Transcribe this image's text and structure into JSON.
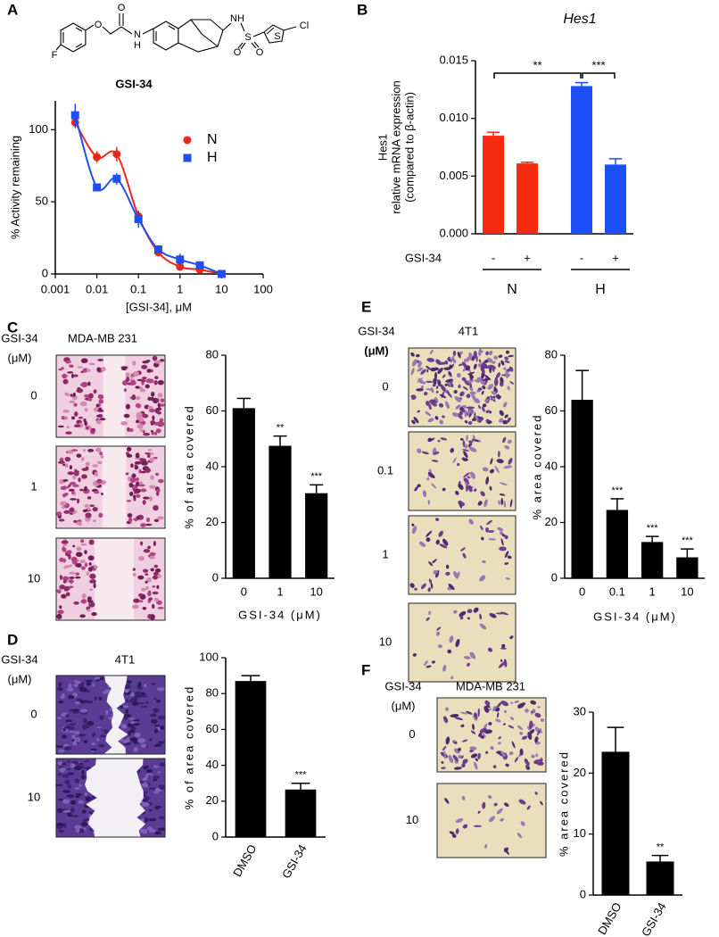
{
  "panels": [
    {
      "letter": "A",
      "structure_atoms": [
        "F",
        "O",
        "O",
        "N",
        "H",
        "NH",
        "S",
        "O",
        "O",
        "S",
        "Cl"
      ]
    },
    {
      "letter": "B"
    },
    {
      "letter": "C",
      "image_header": [
        "GSI-34",
        "(μM)"
      ],
      "cell_line": "MDA-MB 231",
      "image_rows": [
        "0",
        "1",
        "10"
      ]
    },
    {
      "letter": "D",
      "image_header": [
        "GSI-34",
        "(μM)"
      ],
      "cell_line": "4T1",
      "image_rows": [
        "0",
        "10"
      ]
    },
    {
      "letter": "E",
      "image_header": [
        "GSI-34",
        "(μM)"
      ],
      "cell_line": "4T1",
      "image_rows": [
        "0",
        "0.1",
        "1",
        "10"
      ]
    },
    {
      "letter": "F",
      "image_header": [
        "GSI-34",
        "(μM)"
      ],
      "cell_line": "MDA-MB 231",
      "image_rows": [
        "0",
        "10"
      ]
    }
  ],
  "chart_data": [
    {
      "type": "scatter",
      "title": "GSI-34",
      "xlabel": "[GSI-34], μM",
      "ylabel": "% Activity remaining",
      "log_x": true,
      "xlim": [
        0.001,
        100
      ],
      "xticks": [
        0.001,
        0.01,
        0.1,
        1,
        10,
        100
      ],
      "ylim": [
        0,
        120
      ],
      "yticks": [
        0,
        50,
        100
      ],
      "legend": "upper right",
      "series": [
        {
          "name": "N",
          "color": "#e8291c",
          "marker": "circle",
          "x": [
            0.003,
            0.01,
            0.03,
            0.1,
            0.3,
            1,
            3,
            10
          ],
          "values": [
            105,
            81,
            83,
            40,
            15,
            5,
            3,
            0
          ],
          "errors": [
            4,
            4,
            5,
            4,
            2,
            2,
            1,
            1
          ]
        },
        {
          "name": "H",
          "color": "#1f4ff0",
          "marker": "square",
          "x": [
            0.003,
            0.01,
            0.03,
            0.1,
            0.3,
            1,
            3,
            10
          ],
          "values": [
            110,
            60,
            66,
            38,
            17,
            10,
            6,
            0
          ],
          "errors": [
            8,
            2,
            4,
            6,
            3,
            4,
            2,
            1
          ]
        }
      ]
    },
    {
      "type": "bar",
      "title": "Hes1",
      "ylabel": [
        "Hes1",
        "relative mRNA expression",
        "(compared to β-actin)"
      ],
      "ylim": [
        0,
        0.015
      ],
      "yticks": [
        {
          "value": 0,
          "label": "0.000"
        },
        {
          "value": 0.005,
          "label": "0.005"
        },
        {
          "value": 0.01,
          "label": "0.010"
        },
        {
          "value": 0.015,
          "label": "0.015"
        }
      ],
      "category_title": "GSI-34",
      "significance": [
        "**",
        "***"
      ],
      "groups": [
        {
          "name": "N",
          "color": "#f52a0e",
          "categories": [
            "-",
            "+"
          ],
          "values": [
            0.0085,
            0.0061
          ],
          "errors": [
            0.0003,
            0.0001
          ]
        },
        {
          "name": "H",
          "color": "#1c4ff5",
          "categories": [
            "-",
            "+"
          ],
          "values": [
            0.0128,
            0.006
          ],
          "errors": [
            0.0003,
            0.0005
          ]
        }
      ]
    },
    {
      "type": "bar",
      "xlabel": "GSI-34 (μM)",
      "ylabel": "% of area covered",
      "ylim": [
        0,
        80
      ],
      "yticks": [
        0,
        20,
        40,
        60,
        80
      ],
      "categories": [
        "0",
        "1",
        "10"
      ],
      "values": [
        61,
        47.5,
        30.5
      ],
      "errors": [
        3.5,
        3.5,
        3
      ],
      "annotations": [
        null,
        "**",
        "***"
      ],
      "color": "#000000"
    },
    {
      "type": "bar",
      "ylabel": "% of area covered",
      "ylim": [
        0,
        100
      ],
      "yticks": [
        0,
        20,
        40,
        60,
        80,
        100
      ],
      "rotate_labels": true,
      "categories": [
        "DMSO",
        "GSI-34"
      ],
      "values": [
        87,
        26.5
      ],
      "errors": [
        3,
        3.5
      ],
      "annotations": [
        null,
        "***"
      ],
      "color": "#000000"
    },
    {
      "type": "bar",
      "xlabel": "GSI-34 (μM)",
      "ylabel": "% area covered",
      "ylim": [
        0,
        80
      ],
      "yticks": [
        0,
        20,
        40,
        60,
        80
      ],
      "categories": [
        "0",
        "0.1",
        "1",
        "10"
      ],
      "values": [
        64,
        24.5,
        13,
        7.5
      ],
      "errors": [
        10.5,
        4,
        2,
        3
      ],
      "annotations": [
        null,
        "***",
        "***",
        "***"
      ],
      "color": "#000000"
    },
    {
      "type": "bar",
      "ylabel": "% area covered",
      "ylim": [
        0,
        30
      ],
      "yticks": [
        0,
        10,
        20,
        30
      ],
      "rotate_labels": true,
      "categories": [
        "DMSO",
        "GSI-34"
      ],
      "values": [
        23.5,
        5.5
      ],
      "errors": [
        4,
        1
      ],
      "annotations": [
        null,
        "**"
      ],
      "color": "#000000"
    }
  ]
}
